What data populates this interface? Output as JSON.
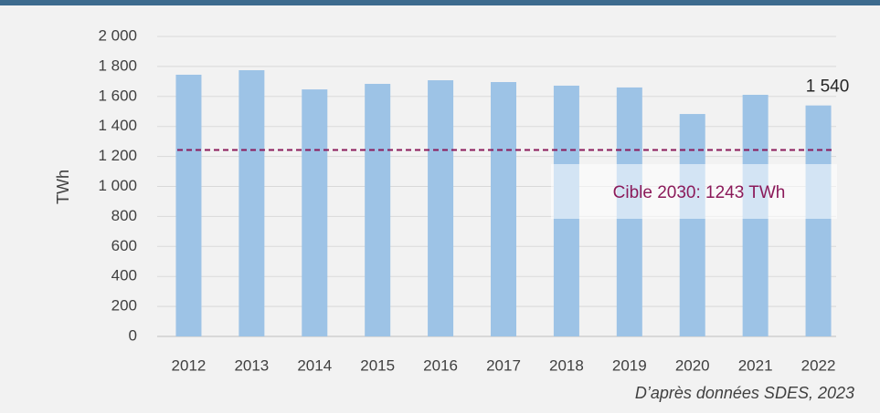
{
  "chart_data": {
    "type": "bar",
    "categories": [
      "2012",
      "2013",
      "2014",
      "2015",
      "2016",
      "2017",
      "2018",
      "2019",
      "2020",
      "2021",
      "2022"
    ],
    "values": [
      1745,
      1775,
      1647,
      1684,
      1708,
      1696,
      1672,
      1660,
      1483,
      1611,
      1540
    ],
    "value_labels": [
      null,
      null,
      null,
      null,
      null,
      null,
      null,
      null,
      null,
      null,
      "1 540"
    ],
    "color": "#9dc3e6",
    "y_label": "TWh",
    "ylim": [
      0,
      2000
    ],
    "yticks": [
      0,
      200,
      400,
      600,
      800,
      {
        "value": 1000,
        "label": "1 000"
      },
      {
        "value": 1200,
        "label": "1 200"
      },
      {
        "value": 1400,
        "label": "1 400"
      },
      {
        "value": 1600,
        "label": "1 600"
      },
      {
        "value": 1800,
        "label": "1 800"
      },
      {
        "value": 2000,
        "label": "2 000"
      }
    ],
    "grid": true,
    "target": {
      "value": 1243,
      "label": "Cible 2030: 1243 TWh",
      "color": "#8b1a5a"
    },
    "source": "D’après données SDES, 2023"
  }
}
